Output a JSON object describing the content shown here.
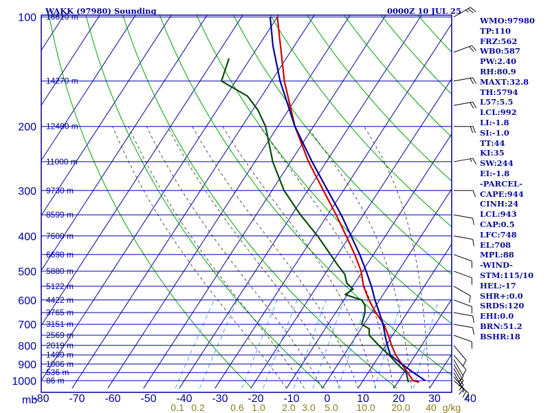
{
  "chart_data": {
    "type": "line",
    "title": "WAKK (97980) Sounding",
    "datetime": "0000Z 10 JUL 25",
    "pressure_unit_label": "mb",
    "pressure_levels": [
      100,
      200,
      300,
      400,
      500,
      600,
      700,
      800,
      900,
      1000
    ],
    "pressure_ticks": [
      100,
      150,
      200,
      250,
      300,
      350,
      400,
      450,
      500,
      550,
      600,
      650,
      700,
      750,
      800,
      850,
      900,
      950,
      1000
    ],
    "height_labels": [
      {
        "p": 100,
        "text": "16610 m"
      },
      {
        "p": 150,
        "text": "14270 m"
      },
      {
        "p": 200,
        "text": "12480 m"
      },
      {
        "p": 250,
        "text": "11000 m"
      },
      {
        "p": 300,
        "text": "9730 m"
      },
      {
        "p": 350,
        "text": "8599 m"
      },
      {
        "p": 400,
        "text": "7600 m"
      },
      {
        "p": 450,
        "text": "6698 m"
      },
      {
        "p": 500,
        "text": "5880 m"
      },
      {
        "p": 550,
        "text": "5122 m"
      },
      {
        "p": 600,
        "text": "4422 m"
      },
      {
        "p": 650,
        "text": "3765 m"
      },
      {
        "p": 700,
        "text": "3151 m"
      },
      {
        "p": 750,
        "text": "2569 m"
      },
      {
        "p": 800,
        "text": "2019 m"
      },
      {
        "p": 850,
        "text": "1499 m"
      },
      {
        "p": 900,
        "text": "1006 m"
      },
      {
        "p": 950,
        "text": "536 m"
      },
      {
        "p": 1000,
        "text": "86 m"
      }
    ],
    "temperature_ticks": [
      -80,
      -70,
      -60,
      -50,
      -40,
      -30,
      -20,
      -10,
      0,
      10,
      20,
      30,
      40
    ],
    "mixing_ratio_labels": [
      "0.1",
      "0.2",
      "0.6",
      "1.0",
      "2.0",
      "3.0",
      "5.0",
      "10.0",
      "20.0",
      "40",
      "g/kg"
    ],
    "isotherm_range": [
      -190,
      40
    ],
    "dry_adiabat_thetas": [
      250,
      270,
      290,
      310,
      330,
      350,
      370,
      390,
      410,
      430,
      450
    ],
    "moist_adiabat_twb": [
      -10,
      -5,
      0,
      5,
      10,
      15,
      20,
      25,
      30
    ],
    "mixing_ratios_gkg": [
      0.1,
      0.2,
      0.6,
      1.0,
      2.0,
      3.0,
      5.0,
      10.0,
      20.0
    ],
    "series": [
      {
        "color": "#cc0000",
        "values": [
          [
            1010,
            26.0
          ],
          [
            1000,
            24.0
          ],
          [
            950,
            21.0
          ],
          [
            900,
            17.8
          ],
          [
            850,
            14.5
          ],
          [
            800,
            11.6
          ],
          [
            750,
            8.8
          ],
          [
            700,
            5.6
          ],
          [
            650,
            1.2
          ],
          [
            600,
            -3.0
          ],
          [
            550,
            -7.0
          ],
          [
            500,
            -10.4
          ],
          [
            450,
            -15.2
          ],
          [
            400,
            -21.0
          ],
          [
            350,
            -27.6
          ],
          [
            300,
            -35.6
          ],
          [
            250,
            -45.0
          ],
          [
            200,
            -55.2
          ],
          [
            150,
            -66.4
          ],
          [
            100,
            -80.0
          ]
        ]
      },
      {
        "color": "#0a4a0a",
        "values": [
          [
            1010,
            23.0
          ],
          [
            1000,
            22.6
          ],
          [
            950,
            20.6
          ],
          [
            900,
            16.6
          ],
          [
            850,
            12.6
          ],
          [
            800,
            8.0
          ],
          [
            750,
            3.5
          ],
          [
            720,
            2.3
          ],
          [
            700,
            -0.6
          ],
          [
            650,
            -1.8
          ],
          [
            620,
            -3.2
          ],
          [
            600,
            -5.0
          ],
          [
            580,
            -10.6
          ],
          [
            560,
            -9.4
          ],
          [
            540,
            -12.2
          ],
          [
            510,
            -14.4
          ],
          [
            480,
            -18.2
          ],
          [
            450,
            -22.0
          ],
          [
            400,
            -29.0
          ],
          [
            350,
            -37.6
          ],
          [
            300,
            -46.6
          ],
          [
            250,
            -55.0
          ],
          [
            200,
            -63.4
          ],
          [
            180,
            -68.6
          ],
          [
            165,
            -74.0
          ],
          [
            150,
            -84.0
          ],
          [
            130,
            -86.0
          ]
        ]
      },
      {
        "color": "#00009a",
        "values": [
          [
            1000,
            27.4
          ],
          [
            950,
            22.6
          ],
          [
            900,
            17.8
          ],
          [
            850,
            13.0
          ],
          [
            800,
            10.4
          ],
          [
            750,
            7.9
          ],
          [
            700,
            5.4
          ],
          [
            650,
            2.2
          ],
          [
            600,
            -1.3
          ],
          [
            550,
            -4.8
          ],
          [
            500,
            -9.0
          ],
          [
            450,
            -13.8
          ],
          [
            400,
            -19.6
          ],
          [
            350,
            -26.2
          ],
          [
            300,
            -34.4
          ],
          [
            250,
            -44.0
          ],
          [
            200,
            -55.2
          ],
          [
            150,
            -67.6
          ],
          [
            120,
            -76.0
          ],
          [
            100,
            -82.0
          ]
        ]
      }
    ],
    "winds": [
      {
        "p": 1000,
        "dir": 130,
        "spd": 10
      },
      {
        "p": 975,
        "dir": 140,
        "spd": 15
      },
      {
        "p": 950,
        "dir": 150,
        "spd": 15
      },
      {
        "p": 925,
        "dir": 150,
        "spd": 15
      },
      {
        "p": 900,
        "dir": 150,
        "spd": 15
      },
      {
        "p": 875,
        "dir": 150,
        "spd": 10
      },
      {
        "p": 850,
        "dir": 140,
        "spd": 10
      },
      {
        "p": 800,
        "dir": 140,
        "spd": 10
      },
      {
        "p": 750,
        "dir": 110,
        "spd": 10
      },
      {
        "p": 700,
        "dir": 100,
        "spd": 10
      },
      {
        "p": 650,
        "dir": 100,
        "spd": 10
      },
      {
        "p": 600,
        "dir": 110,
        "spd": 10
      },
      {
        "p": 550,
        "dir": 120,
        "spd": 10
      },
      {
        "p": 500,
        "dir": 110,
        "spd": 10
      },
      {
        "p": 450,
        "dir": 110,
        "spd": 10
      },
      {
        "p": 400,
        "dir": 100,
        "spd": 10
      },
      {
        "p": 350,
        "dir": 100,
        "spd": 10
      },
      {
        "p": 300,
        "dir": 90,
        "spd": 10
      },
      {
        "p": 250,
        "dir": 80,
        "spd": 15
      },
      {
        "p": 200,
        "dir": 90,
        "spd": 20
      },
      {
        "p": 175,
        "dir": 80,
        "spd": 20
      },
      {
        "p": 150,
        "dir": 80,
        "spd": 20
      },
      {
        "p": 125,
        "dir": 70,
        "spd": 20
      },
      {
        "p": 100,
        "dir": 60,
        "spd": 25
      }
    ],
    "colors": {
      "grid": "#00009a",
      "dry_adiabat": "#00a000",
      "moist_adiabat": "#3a3a3a",
      "mixing_ratio": "#3399ff",
      "mixing_label": "#8a7a1a",
      "wind": "#000000"
    }
  },
  "stats": [
    "WMO:97980",
    "TP:110",
    "FRZ:562",
    "WB0:587",
    "PW:2.40",
    "RH:80.9",
    "MAXT:32.8",
    "TH:5794",
    "L57:5.5",
    "LCL:992",
    "LI:-1.8",
    "SI:-1.0",
    "TT:44",
    "KI:35",
    "SW:244",
    "EI:-1.8",
    "-PARCEL-",
    "CAPE:944",
    "CINH:24",
    "LCL:943",
    "CAP:0.5",
    "LFC:748",
    "EL:708",
    "MPL:88",
    "-WIND-",
    "STM:115/10",
    "HEL:-17",
    "SHR+:0.0",
    "SRDS:120",
    "EHI:0.0",
    "BRN:51.2",
    "BSHR:18"
  ]
}
